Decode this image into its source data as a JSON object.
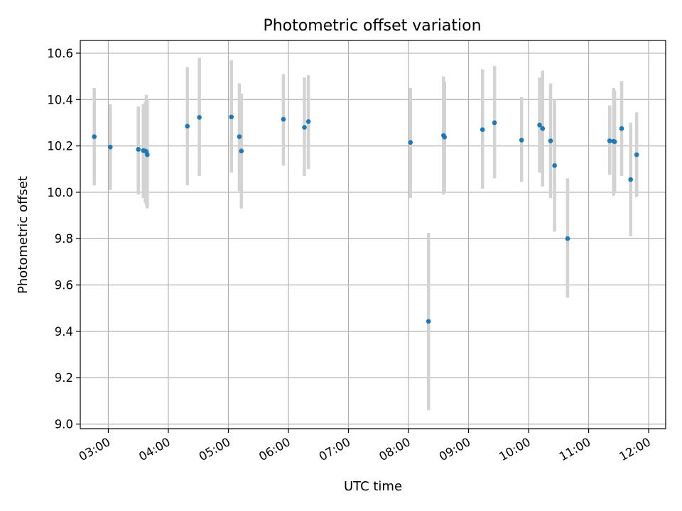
{
  "chart_data": {
    "type": "scatter",
    "title": "Photometric offset variation",
    "xlabel": "UTC time",
    "ylabel": "Photometric offset",
    "xlim": [
      "02:32",
      "12:17"
    ],
    "ylim": [
      8.98,
      10.655
    ],
    "x_ticks": [
      "03:00",
      "04:00",
      "05:00",
      "06:00",
      "07:00",
      "08:00",
      "09:00",
      "10:00",
      "11:00",
      "12:00"
    ],
    "y_ticks": [
      9.0,
      9.2,
      9.4,
      9.6,
      9.8,
      10.0,
      10.2,
      10.4,
      10.6
    ],
    "y_tick_labels": [
      "9.0",
      "9.2",
      "9.4",
      "9.6",
      "9.8",
      "10.0",
      "10.2",
      "10.4",
      "10.6"
    ],
    "grid": true,
    "point_color": "#1f77b4",
    "error_bar_color": "#d3d3d3",
    "points": [
      {
        "x": "02:46",
        "y": 10.24,
        "err_low": 10.03,
        "err_high": 10.45
      },
      {
        "x": "03:02",
        "y": 10.195,
        "err_low": 10.01,
        "err_high": 10.38
      },
      {
        "x": "03:30",
        "y": 10.185,
        "err_low": 9.99,
        "err_high": 10.37
      },
      {
        "x": "03:35",
        "y": 10.18,
        "err_low": 9.975,
        "err_high": 10.38
      },
      {
        "x": "03:37",
        "y": 10.178,
        "err_low": 9.955,
        "err_high": 10.39
      },
      {
        "x": "03:38",
        "y": 10.175,
        "err_low": 9.945,
        "err_high": 10.42
      },
      {
        "x": "03:39",
        "y": 10.162,
        "err_low": 9.93,
        "err_high": 10.395
      },
      {
        "x": "04:19",
        "y": 10.285,
        "err_low": 10.03,
        "err_high": 10.54
      },
      {
        "x": "04:31",
        "y": 10.323,
        "err_low": 10.07,
        "err_high": 10.58
      },
      {
        "x": "05:03",
        "y": 10.325,
        "err_low": 10.085,
        "err_high": 10.57
      },
      {
        "x": "05:11",
        "y": 10.24,
        "err_low": 10.005,
        "err_high": 10.47
      },
      {
        "x": "05:13",
        "y": 10.178,
        "err_low": 9.93,
        "err_high": 10.425
      },
      {
        "x": "05:55",
        "y": 10.315,
        "err_low": 10.115,
        "err_high": 10.51
      },
      {
        "x": "06:16",
        "y": 10.28,
        "err_low": 10.07,
        "err_high": 10.495
      },
      {
        "x": "06:20",
        "y": 10.305,
        "err_low": 10.1,
        "err_high": 10.505
      },
      {
        "x": "08:02",
        "y": 10.215,
        "err_low": 9.975,
        "err_high": 10.45
      },
      {
        "x": "08:20",
        "y": 9.443,
        "err_low": 9.06,
        "err_high": 9.825
      },
      {
        "x": "08:35",
        "y": 10.245,
        "err_low": 9.99,
        "err_high": 10.5
      },
      {
        "x": "08:36",
        "y": 10.238,
        "err_low": 10.0,
        "err_high": 10.478
      },
      {
        "x": "09:14",
        "y": 10.27,
        "err_low": 10.015,
        "err_high": 10.53
      },
      {
        "x": "09:26",
        "y": 10.3,
        "err_low": 10.06,
        "err_high": 10.545
      },
      {
        "x": "09:53",
        "y": 10.225,
        "err_low": 10.045,
        "err_high": 10.41
      },
      {
        "x": "10:11",
        "y": 10.29,
        "err_low": 10.085,
        "err_high": 10.495
      },
      {
        "x": "10:14",
        "y": 10.275,
        "err_low": 10.025,
        "err_high": 10.525
      },
      {
        "x": "10:22",
        "y": 10.222,
        "err_low": 9.975,
        "err_high": 10.47
      },
      {
        "x": "10:26",
        "y": 10.115,
        "err_low": 9.83,
        "err_high": 10.4
      },
      {
        "x": "10:39",
        "y": 9.8,
        "err_low": 9.545,
        "err_high": 10.06
      },
      {
        "x": "11:21",
        "y": 10.222,
        "err_low": 10.075,
        "err_high": 10.375
      },
      {
        "x": "11:25",
        "y": 10.22,
        "err_low": 9.985,
        "err_high": 10.45
      },
      {
        "x": "11:26",
        "y": 10.218,
        "err_low": 10.0,
        "err_high": 10.44
      },
      {
        "x": "11:33",
        "y": 10.275,
        "err_low": 10.07,
        "err_high": 10.48
      },
      {
        "x": "11:42",
        "y": 10.055,
        "err_low": 9.81,
        "err_high": 10.3
      },
      {
        "x": "11:48",
        "y": 10.162,
        "err_low": 9.98,
        "err_high": 10.345
      }
    ]
  }
}
